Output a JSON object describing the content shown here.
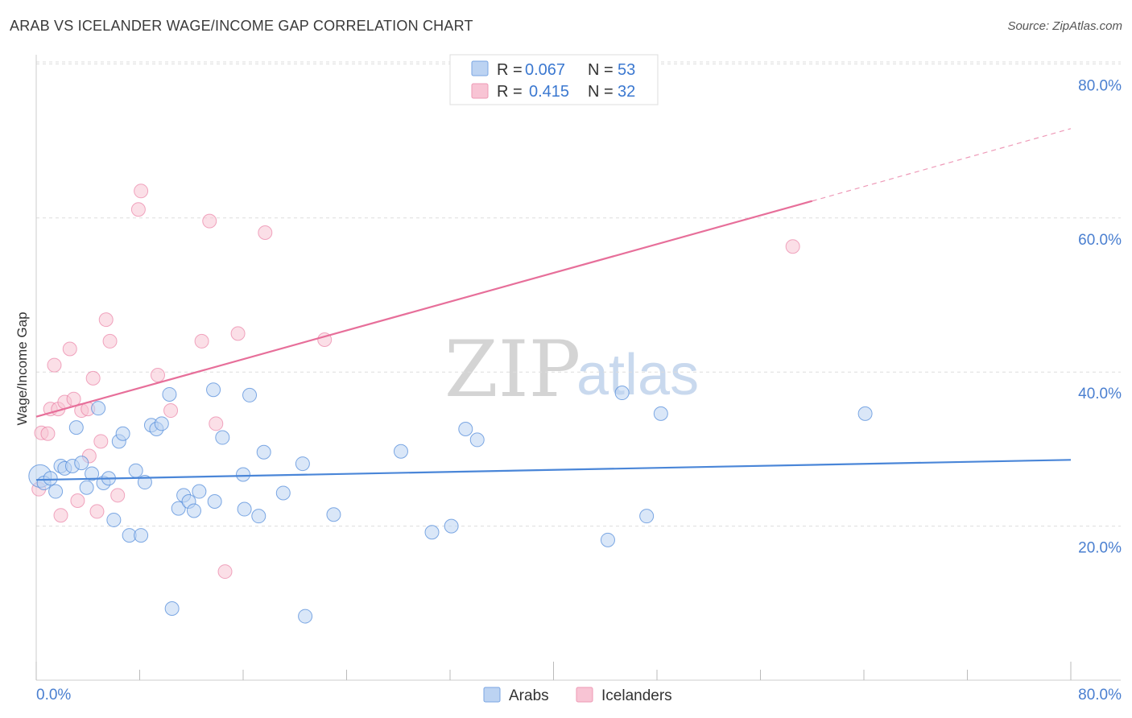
{
  "chart_data": {
    "type": "scatter",
    "title": "ARAB VS ICELANDER WAGE/INCOME GAP CORRELATION CHART",
    "source": "Source: ZipAtlas.com",
    "xlabel": "",
    "ylabel": "Wage/Income Gap",
    "xlim": [
      0,
      80
    ],
    "ylim": [
      0,
      84
    ],
    "x_tick_labels": [
      "0.0%",
      "80.0%"
    ],
    "y_ticks": [
      20,
      40,
      60,
      80
    ],
    "y_tick_labels": [
      "20.0%",
      "40.0%",
      "60.0%",
      "80.0%"
    ],
    "watermark": {
      "zip": "ZIP",
      "atlas": "atlas"
    },
    "legend": [
      {
        "label_r": "R = ",
        "r": "0.067",
        "label_n": "N = ",
        "n": "53"
      },
      {
        "label_r": "R = ",
        "r": "0.415",
        "label_n": "N = ",
        "n": "32"
      }
    ],
    "colors": {
      "arabs": "#4a86d8",
      "arabs_fill": "#bcd3f2",
      "icelanders": "#e76f9a",
      "icelanders_fill": "#f8c4d4"
    },
    "series": [
      {
        "name": "Arabs",
        "trend": {
          "x0": 0,
          "y0": 26.0,
          "x1": 80,
          "y1": 28.6
        },
        "points": [
          [
            0.3,
            26.5
          ],
          [
            0.6,
            25.6
          ],
          [
            1.1,
            26.2
          ],
          [
            1.5,
            24.5
          ],
          [
            1.9,
            27.8
          ],
          [
            2.2,
            27.5
          ],
          [
            2.8,
            27.8
          ],
          [
            3.1,
            32.8
          ],
          [
            3.5,
            28.2
          ],
          [
            3.9,
            25.0
          ],
          [
            4.3,
            26.8
          ],
          [
            4.8,
            35.3
          ],
          [
            5.2,
            25.6
          ],
          [
            5.6,
            26.2
          ],
          [
            6.0,
            20.8
          ],
          [
            6.4,
            31.0
          ],
          [
            6.7,
            32.0
          ],
          [
            7.2,
            18.8
          ],
          [
            7.7,
            27.2
          ],
          [
            8.1,
            18.8
          ],
          [
            8.4,
            25.7
          ],
          [
            8.9,
            33.1
          ],
          [
            9.3,
            32.6
          ],
          [
            9.7,
            33.3
          ],
          [
            10.3,
            37.1
          ],
          [
            10.5,
            9.3
          ],
          [
            11.0,
            22.3
          ],
          [
            11.4,
            24.0
          ],
          [
            11.8,
            23.2
          ],
          [
            12.2,
            22.0
          ],
          [
            12.6,
            24.5
          ],
          [
            13.8,
            23.2
          ],
          [
            13.7,
            37.7
          ],
          [
            14.4,
            31.5
          ],
          [
            16.0,
            26.7
          ],
          [
            16.1,
            22.2
          ],
          [
            16.5,
            37.0
          ],
          [
            17.2,
            21.3
          ],
          [
            17.6,
            29.6
          ],
          [
            19.1,
            24.3
          ],
          [
            20.6,
            28.1
          ],
          [
            20.8,
            8.3
          ],
          [
            23.0,
            21.5
          ],
          [
            28.2,
            29.7
          ],
          [
            30.6,
            19.2
          ],
          [
            32.1,
            20.0
          ],
          [
            33.2,
            32.6
          ],
          [
            34.1,
            31.2
          ],
          [
            44.2,
            18.2
          ],
          [
            45.3,
            37.3
          ],
          [
            47.2,
            21.3
          ],
          [
            48.3,
            34.6
          ],
          [
            64.1,
            34.6
          ]
        ]
      },
      {
        "name": "Icelanders",
        "trend": {
          "x0": 0,
          "y0": 34.2,
          "x1": 60,
          "y1": 62.2,
          "x_dash_end": 80,
          "y_dash_end": 71.6
        },
        "points": [
          [
            0.2,
            24.8
          ],
          [
            0.4,
            32.1
          ],
          [
            0.9,
            32.0
          ],
          [
            1.1,
            35.2
          ],
          [
            1.4,
            40.9
          ],
          [
            1.7,
            35.2
          ],
          [
            1.9,
            21.4
          ],
          [
            2.2,
            36.1
          ],
          [
            2.6,
            43.0
          ],
          [
            2.9,
            36.5
          ],
          [
            3.2,
            23.3
          ],
          [
            3.5,
            35.0
          ],
          [
            4.0,
            35.2
          ],
          [
            4.1,
            29.1
          ],
          [
            4.4,
            39.2
          ],
          [
            4.7,
            21.9
          ],
          [
            5.0,
            31.0
          ],
          [
            5.4,
            46.8
          ],
          [
            5.7,
            44.0
          ],
          [
            6.3,
            24.0
          ],
          [
            7.9,
            61.1
          ],
          [
            8.1,
            63.5
          ],
          [
            9.4,
            39.6
          ],
          [
            10.4,
            35.0
          ],
          [
            12.8,
            44.0
          ],
          [
            13.4,
            59.6
          ],
          [
            13.9,
            33.3
          ],
          [
            14.6,
            14.1
          ],
          [
            15.6,
            45.0
          ],
          [
            17.7,
            58.1
          ],
          [
            22.3,
            44.2
          ],
          [
            58.5,
            56.3
          ]
        ]
      }
    ]
  },
  "bottom_legend": {
    "arabs": "Arabs",
    "icelanders": "Icelanders"
  }
}
